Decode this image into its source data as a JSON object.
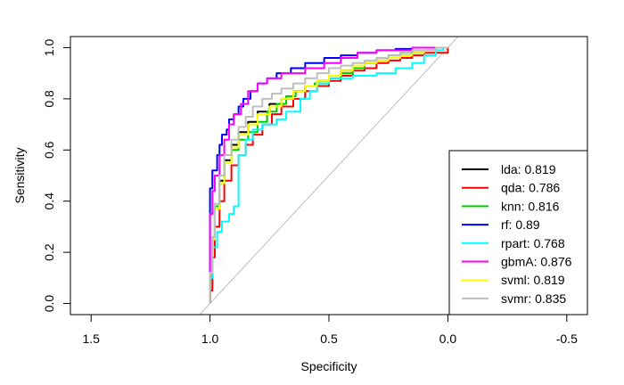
{
  "chart_data": {
    "type": "line",
    "title": "",
    "xlabel": "Specificity",
    "ylabel": "Sensitivity",
    "xlim": [
      1.5,
      -0.5
    ],
    "ylim": [
      0,
      1
    ],
    "x_ticks": [
      {
        "value": 1.5,
        "label": "1.5"
      },
      {
        "value": 1.0,
        "label": "1.0"
      },
      {
        "value": 0.5,
        "label": "0.5"
      },
      {
        "value": 0.0,
        "label": "0.0"
      },
      {
        "value": -0.5,
        "label": "-0.5"
      }
    ],
    "y_ticks": [
      {
        "value": 0.0,
        "label": "0.0"
      },
      {
        "value": 0.2,
        "label": "0.2"
      },
      {
        "value": 0.4,
        "label": "0.4"
      },
      {
        "value": 0.6,
        "label": "0.6"
      },
      {
        "value": 0.8,
        "label": "0.8"
      },
      {
        "value": 1.0,
        "label": "1.0"
      }
    ],
    "grid": false,
    "legend_position": "bottom-right",
    "reference_line": {
      "color": "#bebebe",
      "points": [
        [
          1,
          0
        ],
        [
          0,
          1
        ]
      ]
    },
    "series": [
      {
        "name": "lda",
        "label": "lda: 0.819",
        "color": "#000000",
        "points": [
          [
            1,
            0
          ],
          [
            0.99,
            0.1
          ],
          [
            0.98,
            0.25
          ],
          [
            0.96,
            0.38
          ],
          [
            0.94,
            0.48
          ],
          [
            0.91,
            0.56
          ],
          [
            0.88,
            0.62
          ],
          [
            0.84,
            0.67
          ],
          [
            0.8,
            0.71
          ],
          [
            0.75,
            0.75
          ],
          [
            0.7,
            0.78
          ],
          [
            0.65,
            0.8
          ],
          [
            0.6,
            0.83
          ],
          [
            0.55,
            0.85
          ],
          [
            0.5,
            0.87
          ],
          [
            0.45,
            0.89
          ],
          [
            0.4,
            0.91
          ],
          [
            0.35,
            0.92
          ],
          [
            0.3,
            0.94
          ],
          [
            0.25,
            0.95
          ],
          [
            0.2,
            0.96
          ],
          [
            0.15,
            0.97
          ],
          [
            0.1,
            0.98
          ],
          [
            0.05,
            0.99
          ],
          [
            0,
            1
          ]
        ]
      },
      {
        "name": "qda",
        "label": "qda: 0.786",
        "color": "#ff0000",
        "points": [
          [
            1,
            0
          ],
          [
            0.99,
            0.05
          ],
          [
            0.98,
            0.18
          ],
          [
            0.96,
            0.3
          ],
          [
            0.94,
            0.4
          ],
          [
            0.91,
            0.48
          ],
          [
            0.88,
            0.54
          ],
          [
            0.85,
            0.58
          ],
          [
            0.82,
            0.62
          ],
          [
            0.78,
            0.66
          ],
          [
            0.74,
            0.7
          ],
          [
            0.7,
            0.74
          ],
          [
            0.65,
            0.77
          ],
          [
            0.6,
            0.8
          ],
          [
            0.55,
            0.83
          ],
          [
            0.5,
            0.85
          ],
          [
            0.45,
            0.87
          ],
          [
            0.4,
            0.89
          ],
          [
            0.35,
            0.91
          ],
          [
            0.3,
            0.92
          ],
          [
            0.25,
            0.94
          ],
          [
            0.2,
            0.95
          ],
          [
            0.15,
            0.96
          ],
          [
            0.1,
            0.97
          ],
          [
            0.05,
            0.98
          ],
          [
            0.0,
            0.98
          ],
          [
            0,
            1
          ]
        ]
      },
      {
        "name": "knn",
        "label": "knn: 0.816",
        "color": "#00cd00",
        "points": [
          [
            1,
            0
          ],
          [
            0.99,
            0.12
          ],
          [
            0.98,
            0.26
          ],
          [
            0.96,
            0.38
          ],
          [
            0.94,
            0.47
          ],
          [
            0.91,
            0.55
          ],
          [
            0.88,
            0.6
          ],
          [
            0.84,
            0.64
          ],
          [
            0.8,
            0.67
          ],
          [
            0.76,
            0.71
          ],
          [
            0.72,
            0.75
          ],
          [
            0.68,
            0.78
          ],
          [
            0.64,
            0.81
          ],
          [
            0.6,
            0.83
          ],
          [
            0.56,
            0.85
          ],
          [
            0.5,
            0.86
          ],
          [
            0.45,
            0.88
          ],
          [
            0.4,
            0.9
          ],
          [
            0.35,
            0.92
          ],
          [
            0.3,
            0.94
          ],
          [
            0.25,
            0.96
          ],
          [
            0.2,
            0.97
          ],
          [
            0.15,
            0.98
          ],
          [
            0.1,
            0.99
          ],
          [
            0.05,
            0.99
          ],
          [
            0,
            1
          ]
        ]
      },
      {
        "name": "rf",
        "label": "rf: 0.89",
        "color": "#0000ff",
        "points": [
          [
            1,
            0
          ],
          [
            1.0,
            0.42
          ],
          [
            0.99,
            0.45
          ],
          [
            0.97,
            0.52
          ],
          [
            0.96,
            0.58
          ],
          [
            0.95,
            0.62
          ],
          [
            0.93,
            0.66
          ],
          [
            0.92,
            0.68
          ],
          [
            0.9,
            0.72
          ],
          [
            0.88,
            0.74
          ],
          [
            0.86,
            0.77
          ],
          [
            0.83,
            0.8
          ],
          [
            0.8,
            0.83
          ],
          [
            0.76,
            0.86
          ],
          [
            0.72,
            0.88
          ],
          [
            0.66,
            0.9
          ],
          [
            0.6,
            0.92
          ],
          [
            0.52,
            0.94
          ],
          [
            0.45,
            0.96
          ],
          [
            0.38,
            0.97
          ],
          [
            0.3,
            0.98
          ],
          [
            0.22,
            0.99
          ],
          [
            0.15,
            0.995
          ],
          [
            0.08,
            1
          ],
          [
            0,
            1
          ]
        ]
      },
      {
        "name": "rpart",
        "label": "rpart: 0.768",
        "color": "#00ffff",
        "points": [
          [
            1,
            0
          ],
          [
            0.99,
            0.1
          ],
          [
            0.97,
            0.22
          ],
          [
            0.95,
            0.28
          ],
          [
            0.92,
            0.32
          ],
          [
            0.9,
            0.35
          ],
          [
            0.88,
            0.38
          ],
          [
            0.85,
            0.58
          ],
          [
            0.82,
            0.64
          ],
          [
            0.78,
            0.68
          ],
          [
            0.72,
            0.7
          ],
          [
            0.68,
            0.72
          ],
          [
            0.62,
            0.75
          ],
          [
            0.58,
            0.8
          ],
          [
            0.55,
            0.83
          ],
          [
            0.5,
            0.86
          ],
          [
            0.4,
            0.88
          ],
          [
            0.3,
            0.89
          ],
          [
            0.22,
            0.9
          ],
          [
            0.15,
            0.92
          ],
          [
            0.1,
            0.94
          ],
          [
            0.05,
            0.97
          ],
          [
            0.02,
            0.99
          ],
          [
            0,
            1
          ]
        ]
      },
      {
        "name": "gbmA",
        "label": "gbmA: 0.876",
        "color": "#ff00ff",
        "points": [
          [
            1,
            0
          ],
          [
            1.0,
            0.1
          ],
          [
            0.99,
            0.35
          ],
          [
            0.98,
            0.44
          ],
          [
            0.96,
            0.5
          ],
          [
            0.94,
            0.58
          ],
          [
            0.92,
            0.64
          ],
          [
            0.9,
            0.7
          ],
          [
            0.87,
            0.74
          ],
          [
            0.84,
            0.78
          ],
          [
            0.8,
            0.83
          ],
          [
            0.76,
            0.86
          ],
          [
            0.7,
            0.88
          ],
          [
            0.65,
            0.9
          ],
          [
            0.6,
            0.9
          ],
          [
            0.52,
            0.92
          ],
          [
            0.45,
            0.94
          ],
          [
            0.38,
            0.96
          ],
          [
            0.3,
            0.98
          ],
          [
            0.22,
            0.99
          ],
          [
            0.15,
            0.99
          ],
          [
            0.08,
            1
          ],
          [
            0,
            1
          ]
        ]
      },
      {
        "name": "svml",
        "label": "svml: 0.819",
        "color": "#ffff00",
        "points": [
          [
            1,
            0
          ],
          [
            0.99,
            0.12
          ],
          [
            0.98,
            0.25
          ],
          [
            0.96,
            0.37
          ],
          [
            0.94,
            0.47
          ],
          [
            0.91,
            0.55
          ],
          [
            0.88,
            0.61
          ],
          [
            0.84,
            0.66
          ],
          [
            0.8,
            0.7
          ],
          [
            0.75,
            0.74
          ],
          [
            0.7,
            0.77
          ],
          [
            0.65,
            0.8
          ],
          [
            0.6,
            0.83
          ],
          [
            0.55,
            0.85
          ],
          [
            0.5,
            0.87
          ],
          [
            0.45,
            0.89
          ],
          [
            0.4,
            0.91
          ],
          [
            0.35,
            0.93
          ],
          [
            0.3,
            0.94
          ],
          [
            0.25,
            0.95
          ],
          [
            0.2,
            0.96
          ],
          [
            0.15,
            0.97
          ],
          [
            0.1,
            0.98
          ],
          [
            0.05,
            0.99
          ],
          [
            0,
            1
          ]
        ]
      },
      {
        "name": "svmr",
        "label": "svmr: 0.835",
        "color": "#bebebe",
        "points": [
          [
            1,
            0
          ],
          [
            0.99,
            0.12
          ],
          [
            0.98,
            0.26
          ],
          [
            0.96,
            0.39
          ],
          [
            0.94,
            0.5
          ],
          [
            0.91,
            0.58
          ],
          [
            0.88,
            0.64
          ],
          [
            0.85,
            0.69
          ],
          [
            0.82,
            0.73
          ],
          [
            0.78,
            0.77
          ],
          [
            0.74,
            0.8
          ],
          [
            0.7,
            0.82
          ],
          [
            0.65,
            0.84
          ],
          [
            0.6,
            0.86
          ],
          [
            0.55,
            0.88
          ],
          [
            0.5,
            0.9
          ],
          [
            0.45,
            0.92
          ],
          [
            0.4,
            0.93
          ],
          [
            0.35,
            0.94
          ],
          [
            0.3,
            0.95
          ],
          [
            0.25,
            0.96
          ],
          [
            0.2,
            0.97
          ],
          [
            0.15,
            0.98
          ],
          [
            0.1,
            0.99
          ],
          [
            0.05,
            0.99
          ],
          [
            0,
            1
          ]
        ]
      }
    ]
  }
}
